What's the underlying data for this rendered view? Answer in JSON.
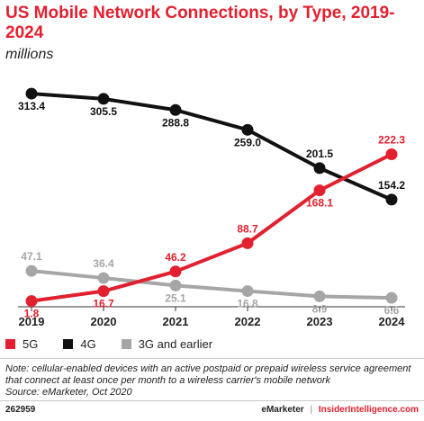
{
  "title": "US Mobile Network Connections, by Type, 2019-2024",
  "subtitle": "millions",
  "chart_data": {
    "type": "line",
    "title": "US Mobile Network Connections, by Type, 2019-2024",
    "subtitle": "millions",
    "xlabel": "",
    "ylabel": "",
    "ylim": [
      0,
      330
    ],
    "grid": false,
    "legend_position": "bottom",
    "categories": [
      "2019",
      "2020",
      "2021",
      "2022",
      "2023",
      "2024"
    ],
    "series": [
      {
        "name": "5G",
        "color": "#e3202f",
        "values": [
          1.8,
          16.7,
          46.2,
          88.7,
          168.1,
          222.3
        ],
        "labels": [
          "1.8",
          "16.7",
          "46.2",
          "88.7",
          "168.1",
          "222.3"
        ]
      },
      {
        "name": "4G",
        "color": "#111111",
        "values": [
          313.4,
          305.5,
          288.8,
          259.0,
          201.5,
          154.2
        ],
        "labels": [
          "313.4",
          "305.5",
          "288.8",
          "259.0",
          "201.5",
          "154.2"
        ]
      },
      {
        "name": "3G and earlier",
        "color": "#a6a6a6",
        "values": [
          47.1,
          36.4,
          25.1,
          16.8,
          8.9,
          6.6
        ],
        "labels": [
          "47.1",
          "36.4",
          "25.1",
          "16.8",
          "8.9",
          "6.6"
        ]
      }
    ]
  },
  "note": "Note: cellular-enabled devices with an active postpaid or prepaid wireless service agreement that connect at least once per month to a wireless carrier's mobile network",
  "source": "Source: eMarketer, Oct 2020",
  "footer": {
    "chart_id": "262959",
    "brand_left": "eMarketer",
    "separator": "|",
    "brand_right": "InsiderIntelligence.com"
  }
}
